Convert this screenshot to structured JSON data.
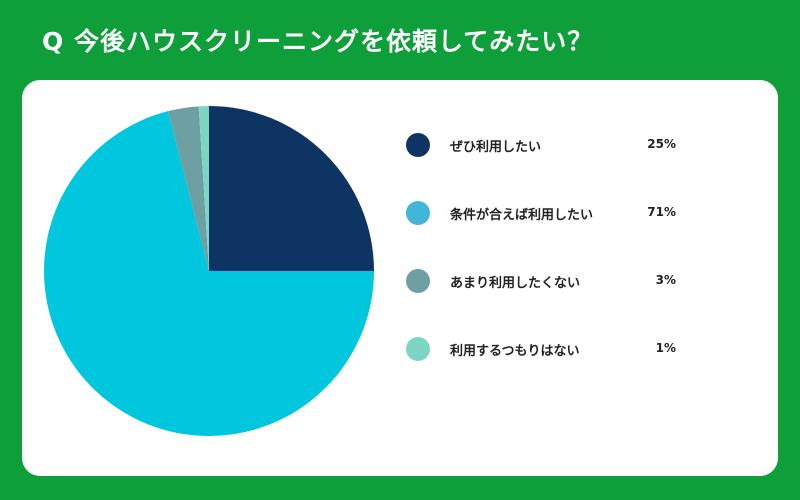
{
  "title": "Q 今後ハウスクリーニングを依頼してみたい？",
  "chart_data": {
    "type": "pie",
    "categories": [
      "ぜひ利用したい",
      "条件が合えば利用したい",
      "あまり利用したくない",
      "利用するつもりはない"
    ],
    "values": [
      25,
      71,
      3,
      1
    ],
    "value_labels": [
      "25%",
      "71%",
      "3%",
      "1%"
    ],
    "colors": [
      "#0e3464",
      "#00c7dd",
      "#6e9fa3",
      "#7dd6c4"
    ],
    "legend_colors": [
      "#0e3464",
      "#42b6d9",
      "#6e9fa3",
      "#7dd6c4"
    ],
    "start_angle": "12 o'clock",
    "direction": "clockwise",
    "legend_position": "right"
  }
}
